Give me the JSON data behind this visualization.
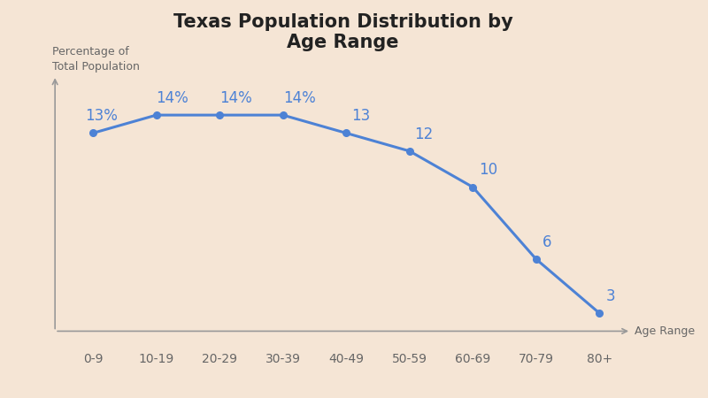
{
  "title": "Texas Population Distribution by\nAge Range",
  "xlabel": "Age Range",
  "ylabel": "Percentage of\nTotal Population",
  "categories": [
    "0-9",
    "10-19",
    "20-29",
    "30-39",
    "40-49",
    "50-59",
    "60-69",
    "70-79",
    "80+"
  ],
  "values": [
    13,
    14,
    14,
    14,
    13,
    12,
    10,
    6,
    3
  ],
  "labels": [
    "13%",
    "14%",
    "14%",
    "14%",
    "13",
    "12",
    "10",
    "6",
    "3"
  ],
  "line_color": "#4d82d5",
  "marker_color": "#4d82d5",
  "label_color": "#4d82d5",
  "background_color": "#f5e5d5",
  "title_fontsize": 15,
  "axis_label_fontsize": 9,
  "data_label_fontsize": 12,
  "tick_label_fontsize": 10,
  "axis_color": "#999999"
}
